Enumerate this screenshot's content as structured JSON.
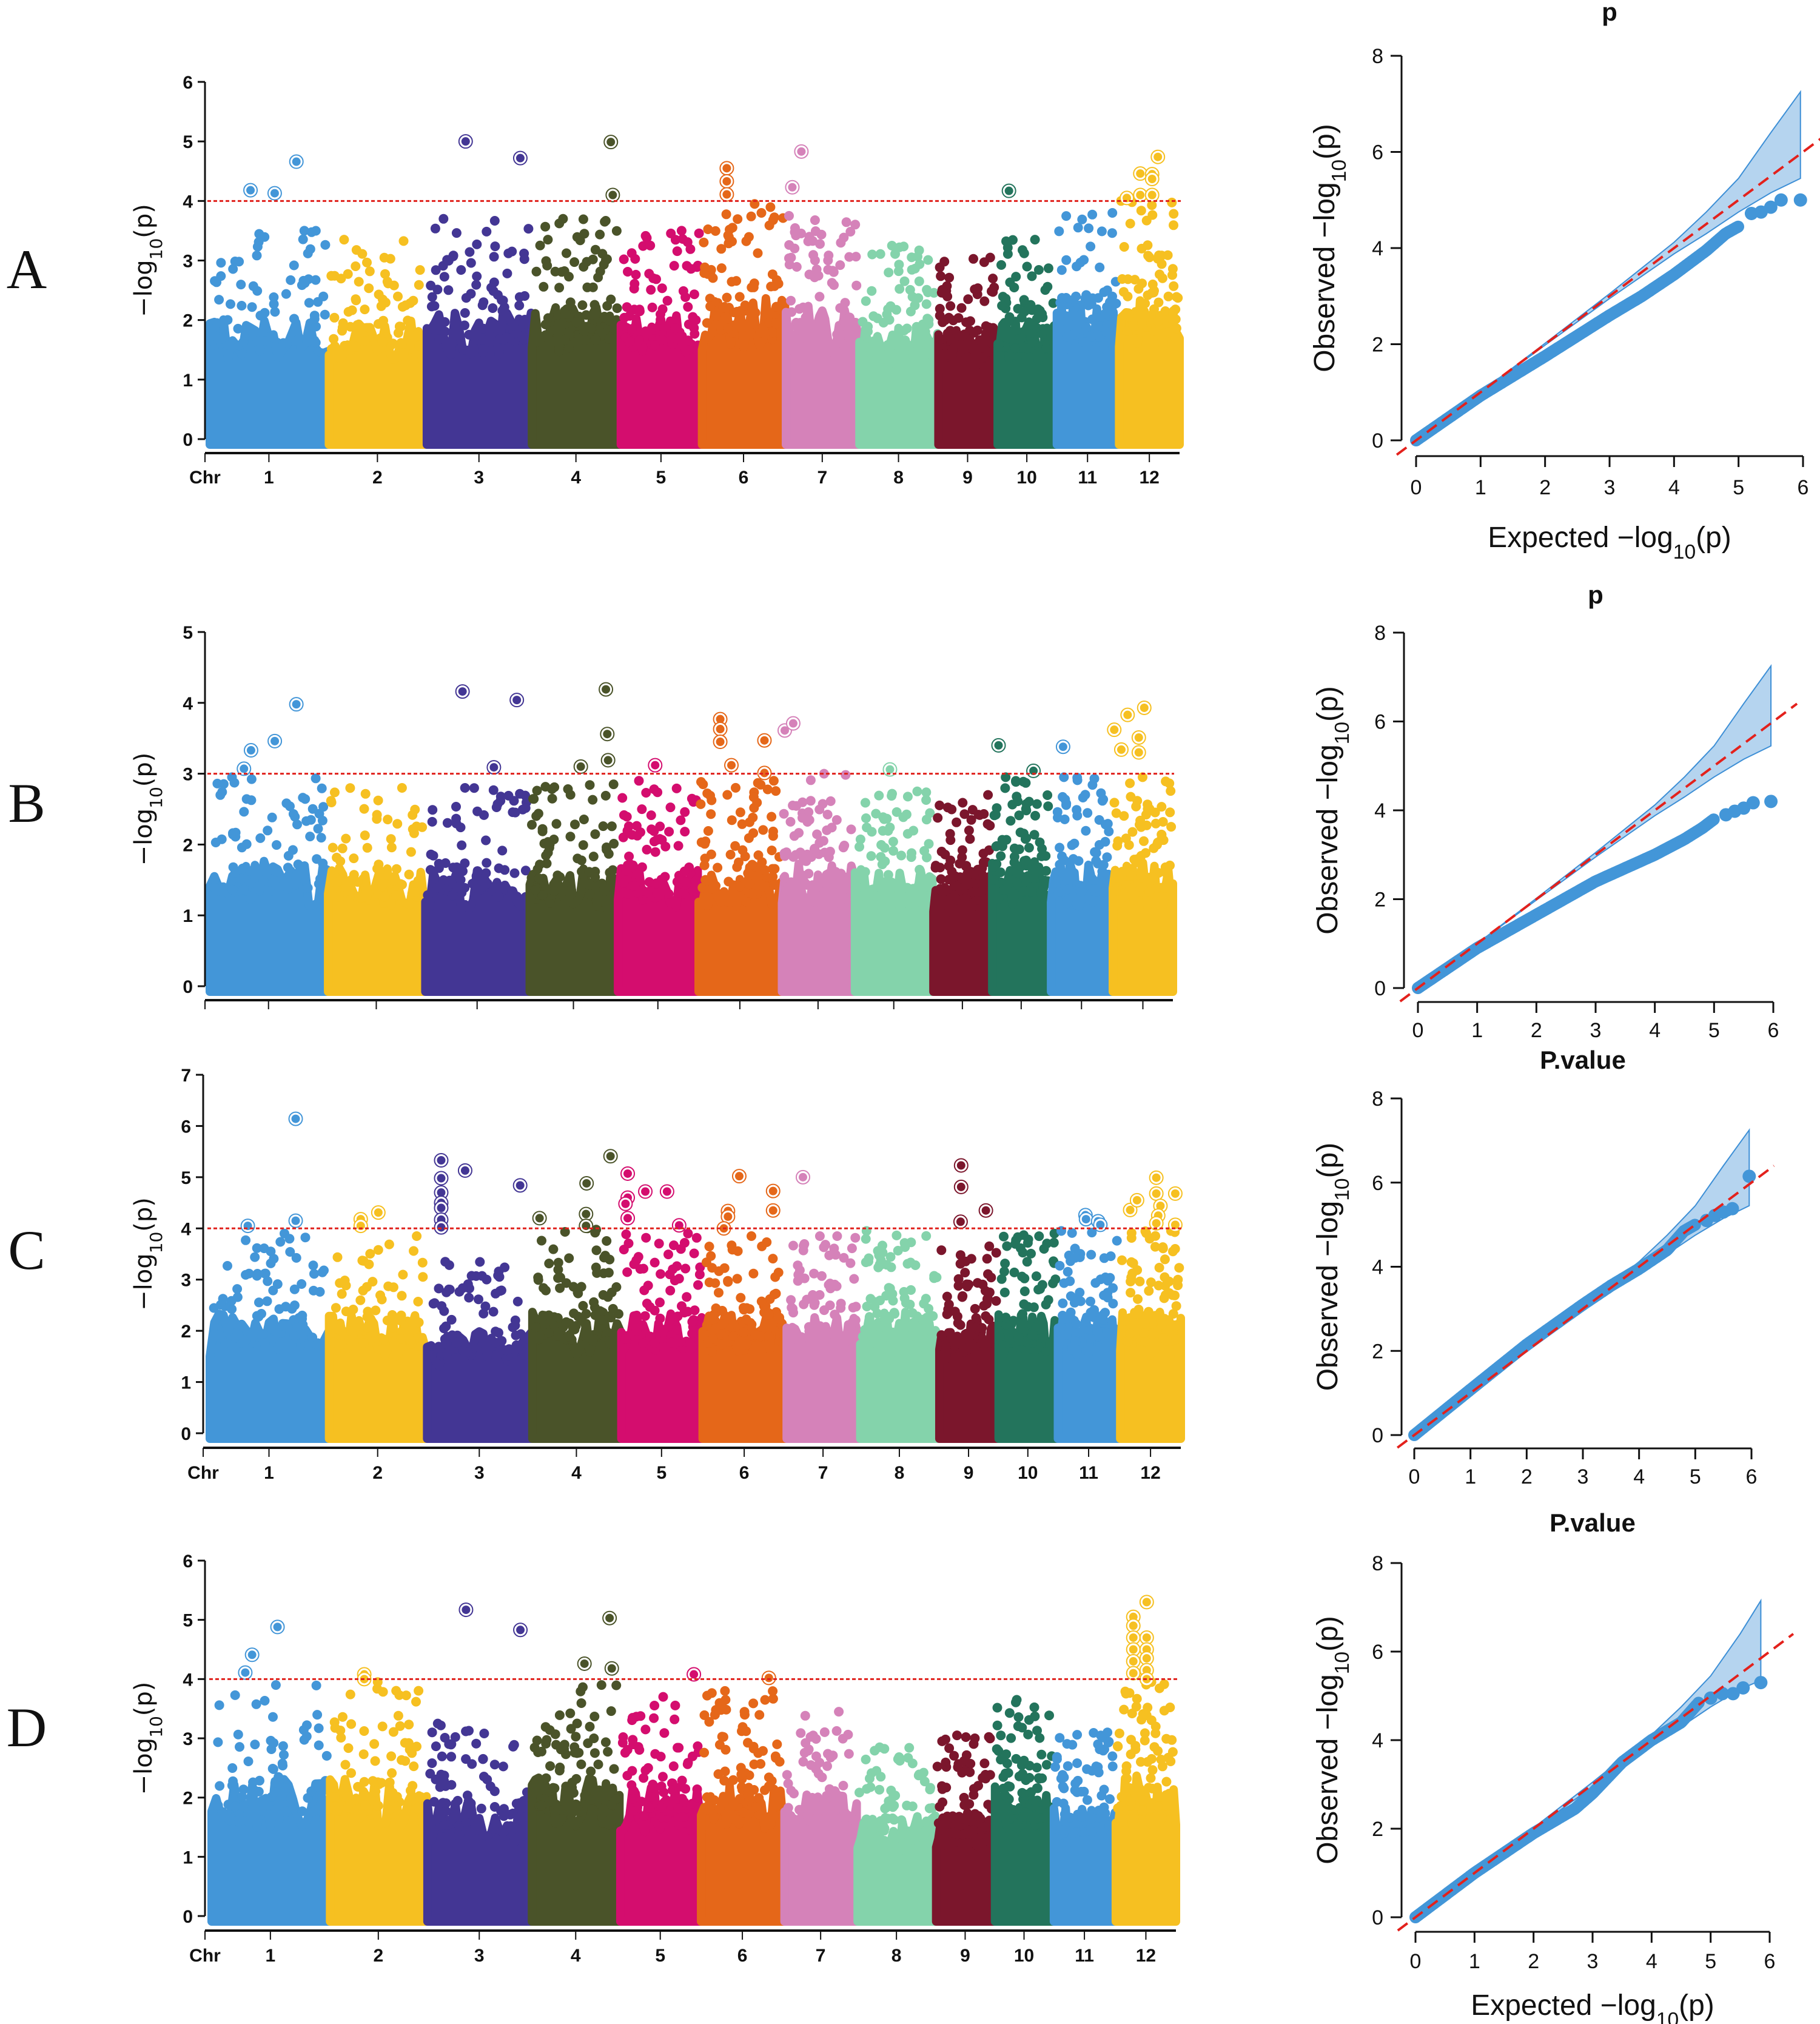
{
  "panel_labels": [
    "A",
    "B",
    "C",
    "D"
  ],
  "genome": {
    "chromosomes": [
      "1",
      "2",
      "3",
      "4",
      "5",
      "6",
      "7",
      "8",
      "9",
      "10",
      "11",
      "12"
    ],
    "chr_sizes_mb": [
      43.0,
      35.3,
      37.9,
      32.0,
      29.2,
      30.2,
      26.4,
      28.4,
      21.2,
      21.2,
      22.3,
      22.0
    ],
    "chr_colors": [
      "#4396d8",
      "#f6c021",
      "#433694",
      "#4a5329",
      "#d40d6e",
      "#e56719",
      "#d582b9",
      "#84d3ab",
      "#7b162c",
      "#23745c",
      "#4396d8",
      "#f6c021"
    ],
    "threshold_color": "#e0201b"
  },
  "chart_data": [
    {
      "type": "scatter",
      "kind": "manhattan",
      "panel": "A",
      "title": "",
      "xlabel": "Chr",
      "show_chr_labels": true,
      "ylabel": {
        "pre": "−log",
        "sub": "10",
        "post": "(p)"
      },
      "ylim": [
        0,
        6
      ],
      "yticks": [
        "0",
        "1",
        "2",
        "3",
        "4",
        "5",
        "6"
      ],
      "threshold": 4,
      "background_max_per_chr": [
        3.5,
        3.35,
        3.7,
        3.7,
        3.5,
        3.95,
        3.75,
        3.25,
        3.05,
        3.35,
        3.8,
        4.0
      ],
      "points_columns": [
        "chr_index",
        "pos_mb",
        "neg_log10_p"
      ],
      "highlighted_points": [
        [
          0,
          14.8,
          4.18
        ],
        [
          0,
          23.6,
          4.13
        ],
        [
          0,
          31.5,
          4.66
        ],
        [
          2,
          14.1,
          5.0
        ],
        [
          2,
          34.0,
          4.72
        ],
        [
          3,
          28.7,
          4.99
        ],
        [
          3,
          29.4,
          4.1
        ],
        [
          5,
          9.0,
          4.55
        ],
        [
          5,
          9.0,
          4.33
        ],
        [
          5,
          9.0,
          4.11
        ],
        [
          6,
          5.6,
          4.83
        ],
        [
          6,
          2.3,
          4.23
        ],
        [
          9,
          4.1,
          4.17
        ],
        [
          11,
          2.8,
          4.05
        ],
        [
          11,
          7.7,
          4.46
        ],
        [
          11,
          7.7,
          4.1
        ],
        [
          11,
          12.0,
          4.45
        ],
        [
          11,
          12.0,
          4.37
        ],
        [
          11,
          12.0,
          4.1
        ],
        [
          11,
          14.1,
          4.74
        ]
      ]
    },
    {
      "type": "scatter",
      "kind": "qq",
      "panel": "A",
      "title": "p",
      "xlabel": {
        "pre": "Expected  −log",
        "sub": "10",
        "post": "(p)"
      },
      "ylabel": {
        "pre": "Observed  −log",
        "sub": "10",
        "post": "(p)"
      },
      "xlim": [
        0,
        6
      ],
      "ylim": [
        0,
        8
      ],
      "xticks": [
        "0",
        "1",
        "2",
        "3",
        "4",
        "5",
        "6"
      ],
      "yticks": [
        "0",
        "2",
        "4",
        "6",
        "8"
      ],
      "observed": {
        "x": [
          0,
          1,
          2,
          3,
          3.5,
          4,
          4.5,
          4.8,
          5,
          5.2,
          5.35,
          5.5,
          5.66,
          5.96
        ],
        "y": [
          0,
          0.93,
          1.75,
          2.6,
          3.0,
          3.45,
          3.95,
          4.3,
          4.45,
          4.72,
          4.75,
          4.85,
          5.0,
          5.0
        ]
      },
      "ci_band": {
        "x": [
          0,
          1,
          2,
          3,
          4,
          4.5,
          5,
          5.5,
          5.96
        ],
        "upper": [
          0,
          1.0,
          2.02,
          3.05,
          4.12,
          4.75,
          5.45,
          6.4,
          7.25
        ],
        "lower": [
          0,
          1.0,
          1.98,
          2.95,
          3.88,
          4.3,
          4.75,
          5.15,
          5.45
        ]
      },
      "reference_line": "y = x"
    },
    {
      "type": "scatter",
      "kind": "manhattan",
      "panel": "B",
      "title": "",
      "xlabel": "",
      "show_chr_labels": false,
      "ylabel": {
        "pre": "−log",
        "sub": "10",
        "post": "(p)"
      },
      "ylim": [
        0,
        5
      ],
      "yticks": [
        "0",
        "1",
        "2",
        "3",
        "4",
        "5"
      ],
      "threshold": 3,
      "background_max_per_chr": [
        2.95,
        2.8,
        2.8,
        2.85,
        2.9,
        2.9,
        3.0,
        2.75,
        2.7,
        2.95,
        2.95,
        2.95
      ],
      "points_columns": [
        "chr_index",
        "pos_mb",
        "neg_log10_p"
      ],
      "highlighted_points": [
        [
          0,
          12.5,
          3.07
        ],
        [
          0,
          15.1,
          3.33
        ],
        [
          0,
          23.8,
          3.46
        ],
        [
          0,
          31.7,
          3.98
        ],
        [
          2,
          13.6,
          4.16
        ],
        [
          2,
          25.1,
          3.09
        ],
        [
          2,
          33.5,
          4.04
        ],
        [
          3,
          27.9,
          4.19
        ],
        [
          3,
          28.4,
          3.56
        ],
        [
          3,
          28.7,
          3.19
        ],
        [
          3,
          18.7,
          3.1
        ],
        [
          4,
          13.6,
          3.12
        ],
        [
          5,
          7.9,
          3.77
        ],
        [
          5,
          7.9,
          3.63
        ],
        [
          5,
          7.9,
          3.45
        ],
        [
          5,
          12.0,
          3.12
        ],
        [
          5,
          24.1,
          3.47
        ],
        [
          5,
          24.1,
          3.01
        ],
        [
          6,
          1.0,
          3.61
        ],
        [
          6,
          4.1,
          3.71
        ],
        [
          7,
          12.8,
          3.06
        ],
        [
          9,
          2.3,
          3.4
        ],
        [
          9,
          15.1,
          3.04
        ],
        [
          10,
          4.4,
          3.38
        ],
        [
          11,
          0.5,
          3.62
        ],
        [
          11,
          3.1,
          3.34
        ],
        [
          11,
          5.4,
          3.83
        ],
        [
          11,
          9.5,
          3.51
        ],
        [
          11,
          9.5,
          3.3
        ],
        [
          11,
          11.5,
          3.93
        ]
      ]
    },
    {
      "type": "scatter",
      "kind": "qq",
      "panel": "B",
      "title": "p",
      "xlabel": null,
      "ylabel": {
        "pre": "Observed  −log",
        "sub": "10",
        "post": "(p)"
      },
      "xlim": [
        0,
        6
      ],
      "ylim": [
        0,
        8
      ],
      "xticks": [
        "0",
        "1",
        "2",
        "3",
        "4",
        "5",
        "6"
      ],
      "yticks": [
        "0",
        "2",
        "4",
        "6",
        "8"
      ],
      "observed": {
        "x": [
          0,
          1,
          2,
          3,
          3.5,
          4,
          4.5,
          4.8,
          5,
          5.2,
          5.35,
          5.5,
          5.66,
          5.96
        ],
        "y": [
          0,
          0.9,
          1.65,
          2.4,
          2.7,
          3.0,
          3.35,
          3.6,
          3.8,
          3.9,
          3.98,
          4.05,
          4.17,
          4.2
        ]
      },
      "ci_band": {
        "x": [
          0,
          1,
          2,
          3,
          4,
          4.5,
          5,
          5.5,
          5.96
        ],
        "upper": [
          0,
          1.0,
          2.02,
          3.05,
          4.12,
          4.75,
          5.45,
          6.4,
          7.25
        ],
        "lower": [
          0,
          1.0,
          1.98,
          2.95,
          3.88,
          4.3,
          4.75,
          5.15,
          5.45
        ]
      },
      "reference_line": "y = x"
    },
    {
      "type": "scatter",
      "kind": "manhattan",
      "panel": "C",
      "title": "",
      "xlabel": "Chr",
      "show_chr_labels": true,
      "ylabel": {
        "pre": "−log",
        "sub": "10",
        "post": "(p)"
      },
      "ylim": [
        0,
        7
      ],
      "yticks": [
        "0",
        "1",
        "2",
        "3",
        "4",
        "5",
        "6",
        "7"
      ],
      "threshold": 4,
      "background_max_per_chr": [
        3.9,
        3.85,
        3.35,
        4.0,
        3.9,
        3.85,
        3.85,
        3.95,
        3.65,
        3.9,
        3.95,
        3.95
      ],
      "points_columns": [
        "chr_index",
        "pos_mb",
        "neg_log10_p"
      ],
      "highlighted_points": [
        [
          0,
          13.8,
          4.05
        ],
        [
          0,
          31.2,
          6.14
        ],
        [
          0,
          31.2,
          4.15
        ],
        [
          1,
          11.5,
          4.18
        ],
        [
          1,
          11.5,
          4.05
        ],
        [
          1,
          17.9,
          4.31
        ],
        [
          2,
          5.1,
          5.33
        ],
        [
          2,
          5.1,
          4.98
        ],
        [
          2,
          5.1,
          4.7
        ],
        [
          2,
          5.1,
          4.5
        ],
        [
          2,
          5.1,
          4.4
        ],
        [
          2,
          5.1,
          4.17
        ],
        [
          2,
          5.1,
          4.02
        ],
        [
          2,
          13.8,
          5.13
        ],
        [
          2,
          33.8,
          4.84
        ],
        [
          3,
          2.6,
          4.2
        ],
        [
          3,
          19.7,
          4.88
        ],
        [
          3,
          19.5,
          4.28
        ],
        [
          3,
          19.5,
          4.05
        ],
        [
          3,
          28.4,
          5.41
        ],
        [
          4,
          2.3,
          5.07
        ],
        [
          4,
          2.3,
          4.6
        ],
        [
          4,
          1.5,
          4.48
        ],
        [
          4,
          2.3,
          4.2
        ],
        [
          4,
          8.7,
          4.72
        ],
        [
          4,
          16.6,
          4.72
        ],
        [
          4,
          21.0,
          4.06
        ],
        [
          5,
          13.3,
          5.02
        ],
        [
          5,
          9.2,
          4.34
        ],
        [
          5,
          9.2,
          4.23
        ],
        [
          5,
          7.7,
          4.0
        ],
        [
          5,
          25.6,
          4.73
        ],
        [
          5,
          25.6,
          4.35
        ],
        [
          6,
          5.9,
          5.0
        ],
        [
          8,
          7.9,
          5.23
        ],
        [
          8,
          7.9,
          4.81
        ],
        [
          8,
          7.7,
          4.13
        ],
        [
          8,
          16.9,
          4.35
        ],
        [
          10,
          10.0,
          4.26
        ],
        [
          10,
          10.2,
          4.18
        ],
        [
          10,
          14.6,
          4.14
        ],
        [
          10,
          15.4,
          4.07
        ],
        [
          11,
          3.6,
          4.36
        ],
        [
          11,
          6.1,
          4.55
        ],
        [
          11,
          13.1,
          4.99
        ],
        [
          11,
          13.1,
          4.68
        ],
        [
          11,
          14.6,
          4.44
        ],
        [
          11,
          13.8,
          4.25
        ],
        [
          11,
          13.1,
          4.1
        ],
        [
          11,
          20.0,
          4.68
        ],
        [
          11,
          20.0,
          4.07
        ]
      ]
    },
    {
      "type": "scatter",
      "kind": "qq",
      "panel": "C",
      "title": "P.value",
      "xlabel": null,
      "ylabel": {
        "pre": "Observed  −log",
        "sub": "10",
        "post": "(p)"
      },
      "xlim": [
        0,
        6
      ],
      "ylim": [
        0,
        8
      ],
      "xticks": [
        "0",
        "1",
        "2",
        "3",
        "4",
        "5",
        "6"
      ],
      "yticks": [
        "0",
        "2",
        "4",
        "6",
        "8"
      ],
      "observed": {
        "x": [
          0,
          1,
          2,
          3,
          3.5,
          4,
          4.5,
          4.8,
          5,
          5.2,
          5.35,
          5.5,
          5.66,
          5.96
        ],
        "y": [
          0,
          1.08,
          2.15,
          3.1,
          3.55,
          3.95,
          4.4,
          4.85,
          5.0,
          5.1,
          5.22,
          5.3,
          5.38,
          6.15
        ]
      },
      "ci_band": {
        "x": [
          0,
          1,
          2,
          3,
          4,
          4.5,
          5,
          5.5,
          5.96
        ],
        "upper": [
          0,
          1.0,
          2.02,
          3.05,
          4.12,
          4.75,
          5.45,
          6.4,
          7.25
        ],
        "lower": [
          0,
          1.0,
          1.98,
          2.95,
          3.88,
          4.3,
          4.75,
          5.15,
          5.45
        ]
      },
      "reference_line": "y = x"
    },
    {
      "type": "scatter",
      "kind": "manhattan",
      "panel": "D",
      "title": "",
      "xlabel": "Chr",
      "show_chr_labels": true,
      "ylabel": {
        "pre": "−log",
        "sub": "10",
        "post": "(p)"
      },
      "ylim": [
        0,
        6
      ],
      "yticks": [
        "0",
        "1",
        "2",
        "3",
        "4",
        "5",
        "6"
      ],
      "threshold": 4,
      "background_max_per_chr": [
        3.9,
        3.95,
        3.25,
        3.9,
        3.7,
        3.8,
        3.45,
        2.85,
        3.05,
        3.65,
        3.1,
        3.95
      ],
      "points_columns": [
        "chr_index",
        "pos_mb",
        "neg_log10_p"
      ],
      "highlighted_points": [
        [
          0,
          12.3,
          4.11
        ],
        [
          0,
          14.8,
          4.41
        ],
        [
          0,
          24.1,
          4.88
        ],
        [
          1,
          12.5,
          4.08
        ],
        [
          1,
          12.5,
          4.0
        ],
        [
          2,
          14.1,
          5.17
        ],
        [
          2,
          34.0,
          4.83
        ],
        [
          3,
          19.2,
          4.26
        ],
        [
          3,
          28.4,
          5.03
        ],
        [
          3,
          29.2,
          4.18
        ],
        [
          4,
          26.9,
          4.08
        ],
        [
          5,
          24.8,
          4.02
        ],
        [
          11,
          6.4,
          5.05
        ],
        [
          11,
          6.4,
          4.9
        ],
        [
          11,
          6.4,
          4.7
        ],
        [
          11,
          6.4,
          4.5
        ],
        [
          11,
          6.4,
          4.3
        ],
        [
          11,
          6.4,
          4.1
        ],
        [
          11,
          11.3,
          5.3
        ],
        [
          11,
          11.3,
          4.7
        ],
        [
          11,
          11.3,
          4.5
        ],
        [
          11,
          11.3,
          4.35
        ],
        [
          11,
          11.3,
          4.15
        ],
        [
          11,
          11.3,
          4.0
        ]
      ]
    },
    {
      "type": "scatter",
      "kind": "qq",
      "panel": "D",
      "title": "P.value",
      "xlabel": {
        "pre": "Expected  −log",
        "sub": "10",
        "post": "(p)"
      },
      "ylabel": {
        "pre": "Observed  −log",
        "sub": "10",
        "post": "(p)"
      },
      "xlim": [
        0,
        6
      ],
      "ylim": [
        0,
        8
      ],
      "xticks": [
        "0",
        "1",
        "2",
        "3",
        "4",
        "5",
        "6"
      ],
      "yticks": [
        "0",
        "2",
        "4",
        "6",
        "8"
      ],
      "observed": {
        "x": [
          0,
          1,
          2,
          2.7,
          3,
          3.5,
          4,
          4.5,
          4.8,
          5,
          5.2,
          5.38,
          5.55,
          5.85
        ],
        "y": [
          0,
          1.0,
          1.9,
          2.45,
          2.8,
          3.5,
          4.0,
          4.4,
          4.85,
          4.95,
          5.05,
          5.05,
          5.18,
          5.3
        ]
      },
      "ci_band": {
        "x": [
          0,
          1,
          2,
          3,
          4,
          4.5,
          5,
          5.5,
          5.85
        ],
        "upper": [
          0,
          1.0,
          2.02,
          3.05,
          4.12,
          4.75,
          5.45,
          6.4,
          7.15
        ],
        "lower": [
          0,
          1.0,
          1.98,
          2.95,
          3.88,
          4.3,
          4.75,
          5.15,
          5.35
        ]
      },
      "reference_line": "y = x"
    }
  ]
}
